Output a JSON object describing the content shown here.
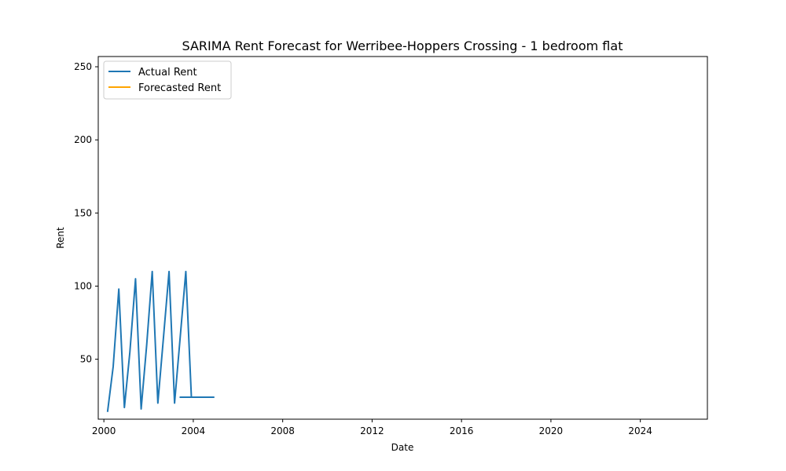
{
  "chart_data": {
    "type": "line",
    "title": "SARIMA Rent Forecast for Werribee-Hoppers Crossing - 1 bedroom flat",
    "xlabel": "Date",
    "ylabel": "Rent",
    "xlim": [
      "1999-10-01",
      "2027-01-01"
    ],
    "ylim": [
      9,
      257
    ],
    "x_ticks": [
      "2000-01-01",
      "2004-01-01",
      "2008-01-01",
      "2012-01-01",
      "2016-01-01",
      "2020-01-01",
      "2024-01-01"
    ],
    "x_tick_labels": [
      "2000",
      "2004",
      "2008",
      "2012",
      "2016",
      "2020",
      "2024"
    ],
    "y_ticks": [
      50,
      100,
      150,
      200,
      250
    ],
    "y_tick_labels": [
      "50",
      "100",
      "150",
      "200",
      "250"
    ],
    "grid": false,
    "legend_position": "top-left",
    "legend_labels": [
      "Actual Rent",
      "Forecasted Rent"
    ],
    "series": [
      {
        "name": "Actual Rent",
        "color": "#1f77b4",
        "points": [
          [
            "2000-03-01",
            14
          ],
          [
            "2000-06-01",
            45
          ],
          [
            "2000-09-01",
            98
          ],
          [
            "2000-12-01",
            17
          ],
          [
            "2001-03-01",
            55
          ],
          [
            "2001-06-01",
            105
          ],
          [
            "2001-09-01",
            16
          ],
          [
            "2001-12-01",
            60
          ],
          [
            "2002-03-01",
            110
          ],
          [
            "2002-06-01",
            20
          ],
          [
            "2002-09-01",
            65
          ],
          [
            "2002-12-01",
            110
          ],
          [
            "2003-03-01",
            20
          ],
          [
            "2003-06-01",
            65
          ],
          [
            "2003-09-01",
            110
          ],
          [
            "2003-12-01",
            24
          ],
          [
            "2004-03-01",
            24
          ],
          [
            "2004-06-01",
            24
          ],
          [
            "2004-09-01",
            24
          ],
          [
            "2004-12-01",
            24
          ],
          [
            "2003-06-01",
            24
          ],
          [
            "2003-09-01",
            24
          ],
          [
            "2003-12-01",
            24
          ],
          [
            "2004-03-01",
            24
          ]
        ]
      },
      {
        "name": "Forecasted Rent",
        "color": "#ffa500",
        "points": []
      }
    ]
  }
}
